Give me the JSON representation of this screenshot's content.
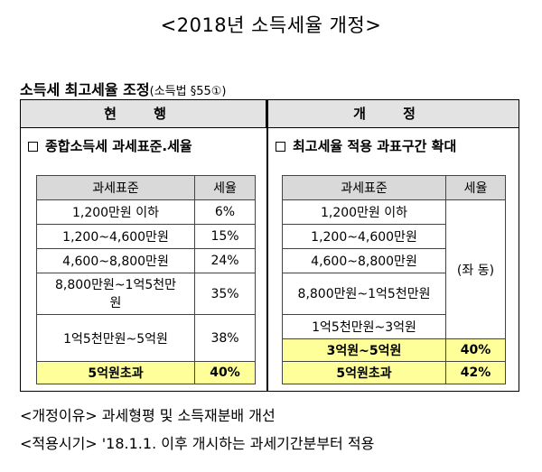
{
  "title": "<2018년 소득세율 개정>",
  "subtitle": {
    "main": "소득세 최고세율 조정",
    "ref": "(소득법 §55①)"
  },
  "current": {
    "header": "현 행",
    "box_title": "종합소득세 과세표준.세율",
    "col_base": "과세표준",
    "col_rate": "세율",
    "rows": [
      {
        "base": "1,200만원 이하",
        "rate": "6%"
      },
      {
        "base": "1,200~4,600만원",
        "rate": "15%"
      },
      {
        "base": "4,600~8,800만원",
        "rate": "24%"
      },
      {
        "base": "8,800만원~1억5천만원",
        "rate": "35%"
      },
      {
        "base": "1억5천만원~5억원",
        "rate": "38%"
      },
      {
        "base": "5억원초과",
        "rate": "40%"
      }
    ]
  },
  "revised": {
    "header": "개 정",
    "box_title": "최고세율 적용 과표구간 확대",
    "col_base": "과세표준",
    "col_rate": "세율",
    "same_note": "(좌 동)",
    "rows": [
      {
        "base": "1,200만원 이하"
      },
      {
        "base": "1,200~4,600만원"
      },
      {
        "base": "4,600~8,800만원"
      },
      {
        "base": "8,800만원~1억5천만원"
      },
      {
        "base": "1억5천만원~3억원"
      },
      {
        "base": "3억원~5억원",
        "rate": "40%"
      },
      {
        "base": "5억원초과",
        "rate": "42%"
      }
    ]
  },
  "footer": {
    "reason": "<개정이유> 과세형평 및 소득재분배 개선",
    "effective": "<적용시기> '18.1.1. 이후 개시하는 과세기간분부터 적용"
  },
  "colors": {
    "header_bg": "#e3e3e3",
    "table_head_bg": "#d9d9d9",
    "highlight": "#ffff99"
  }
}
